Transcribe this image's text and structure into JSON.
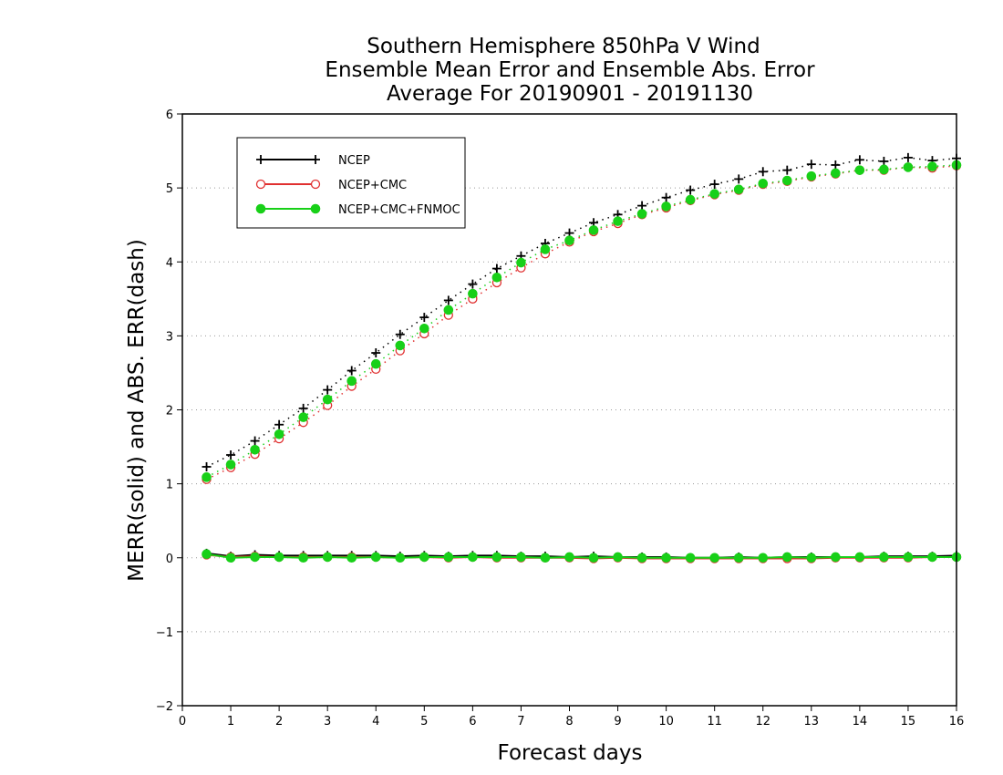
{
  "chart_data": {
    "type": "line",
    "title": [
      "Southern Hemisphere 850hPa V Wind",
      "Ensemble Mean Error and Ensemble Abs. Error",
      "Average For 20190901 - 20191130"
    ],
    "xlabel": "Forecast days",
    "ylabel": "MERR(solid) and ABS. ERR(dash)",
    "xlim": [
      0,
      16
    ],
    "ylim": [
      -2,
      6
    ],
    "xticks": [
      "0",
      "1",
      "2",
      "3",
      "4",
      "5",
      "6",
      "7",
      "8",
      "9",
      "10",
      "11",
      "12",
      "13",
      "14",
      "15",
      "16"
    ],
    "yticks": [
      "−2",
      "−1",
      "0",
      "1",
      "2",
      "3",
      "4",
      "5",
      "6"
    ],
    "grid": "horizontal dotted",
    "legend_position": "top-left",
    "x": [
      0.5,
      1,
      1.5,
      2,
      2.5,
      3,
      3.5,
      4,
      4.5,
      5,
      5.5,
      6,
      6.5,
      7,
      7.5,
      8,
      8.5,
      9,
      9.5,
      10,
      10.5,
      11,
      11.5,
      12,
      12.5,
      13,
      13.5,
      14,
      14.5,
      15,
      15.5,
      16
    ],
    "series": [
      {
        "name": "NCEP",
        "color": "#000000",
        "marker": "plus",
        "merr": [
          0.06,
          0.02,
          0.04,
          0.03,
          0.03,
          0.03,
          0.03,
          0.03,
          0.02,
          0.03,
          0.02,
          0.03,
          0.03,
          0.02,
          0.02,
          0.01,
          0.02,
          0.01,
          0.01,
          0.01,
          0.0,
          0.0,
          0.01,
          0.0,
          0.01,
          0.01,
          0.01,
          0.01,
          0.02,
          0.02,
          0.02,
          0.03
        ],
        "abs_err": [
          1.23,
          1.39,
          1.58,
          1.8,
          2.02,
          2.27,
          2.53,
          2.77,
          3.02,
          3.25,
          3.48,
          3.7,
          3.91,
          4.08,
          4.25,
          4.39,
          4.53,
          4.64,
          4.76,
          4.87,
          4.97,
          5.05,
          5.12,
          5.22,
          5.24,
          5.32,
          5.31,
          5.38,
          5.36,
          5.41,
          5.37,
          5.4
        ]
      },
      {
        "name": "NCEP+CMC",
        "color": "#e03030",
        "marker": "open-circle",
        "merr": [
          0.04,
          0.01,
          0.02,
          0.01,
          0.01,
          0.01,
          0.01,
          0.01,
          0.0,
          0.01,
          0.0,
          0.01,
          0.0,
          0.0,
          0.0,
          0.0,
          -0.01,
          0.0,
          -0.01,
          -0.01,
          -0.01,
          -0.01,
          -0.01,
          -0.01,
          -0.01,
          -0.01,
          0.0,
          0.0,
          0.0,
          0.0,
          0.01,
          0.01
        ],
        "abs_err": [
          1.06,
          1.22,
          1.4,
          1.61,
          1.83,
          2.06,
          2.32,
          2.55,
          2.8,
          3.03,
          3.28,
          3.5,
          3.72,
          3.92,
          4.11,
          4.27,
          4.41,
          4.52,
          4.64,
          4.73,
          4.83,
          4.91,
          4.97,
          5.05,
          5.09,
          5.15,
          5.19,
          5.24,
          5.24,
          5.28,
          5.27,
          5.3
        ]
      },
      {
        "name": "NCEP+CMC+FNMOC",
        "color": "#18d018",
        "marker": "filled-circle",
        "merr": [
          0.05,
          0.0,
          0.01,
          0.01,
          0.0,
          0.01,
          0.0,
          0.01,
          0.0,
          0.01,
          0.01,
          0.01,
          0.01,
          0.01,
          0.0,
          0.01,
          0.0,
          0.01,
          0.0,
          0.0,
          0.0,
          0.0,
          0.0,
          0.0,
          0.01,
          0.0,
          0.01,
          0.01,
          0.01,
          0.01,
          0.01,
          0.01
        ],
        "abs_err": [
          1.09,
          1.26,
          1.46,
          1.67,
          1.9,
          2.14,
          2.39,
          2.62,
          2.87,
          3.1,
          3.35,
          3.57,
          3.79,
          3.99,
          4.17,
          4.29,
          4.43,
          4.55,
          4.65,
          4.75,
          4.84,
          4.92,
          4.98,
          5.06,
          5.1,
          5.16,
          5.2,
          5.24,
          5.25,
          5.28,
          5.29,
          5.31
        ]
      }
    ]
  }
}
